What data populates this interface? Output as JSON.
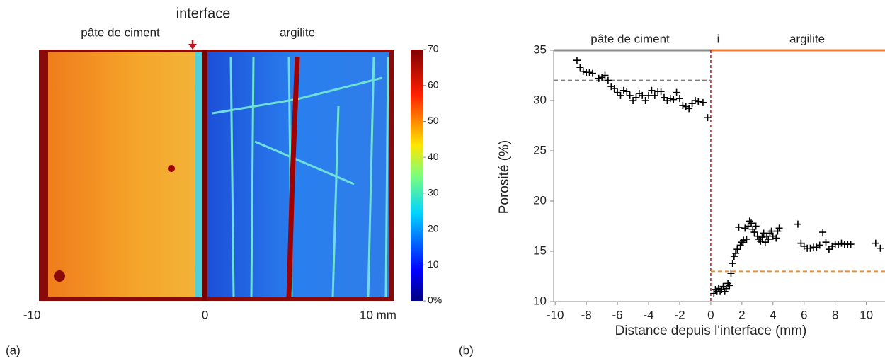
{
  "chart_data": [
    {
      "type": "heatmap",
      "panel": "(a)",
      "region_labels": [
        "pâte de ciment",
        "argilite"
      ],
      "region_colors": [
        "#8c8c8c",
        "#ee8a3a"
      ],
      "interface_label": "interface",
      "interface_color": "#c0141e",
      "xlim": [
        -9.6,
        10.9
      ],
      "xticks": [
        -10,
        0,
        {
          "value": 10,
          "label": "10 mm"
        }
      ],
      "colorbar": {
        "lim": [
          0,
          70
        ],
        "ticks": [
          {
            "value": 0,
            "label": "0%"
          },
          10,
          20,
          30,
          40,
          50,
          60,
          70
        ]
      }
    },
    {
      "type": "scatter",
      "panel": "(b)",
      "region_labels": [
        "pâte de ciment",
        "argilite"
      ],
      "region_colors": [
        "#8c8c8c",
        "#ee7d31"
      ],
      "interface_label": "i",
      "interface_color": "#c0141e",
      "interface_x": 0,
      "xlabel": "Distance depuis l'interface (mm)",
      "ylabel": "Porosité (%)",
      "color": "#000",
      "xlim": [
        -10.1,
        11.2
      ],
      "ylim": [
        10,
        35
      ],
      "xticks": [
        -10,
        -8,
        -6,
        -4,
        -2,
        0,
        2,
        4,
        6,
        8,
        10
      ],
      "yticks": [
        10,
        15,
        20,
        25,
        30,
        35
      ],
      "reference_lines": [
        {
          "y": 32,
          "from": -10.1,
          "to": 0,
          "color": "#7f7f7f"
        },
        {
          "y": 13,
          "from": 0,
          "to": 11.2,
          "color": "#f28c28"
        }
      ],
      "x": [
        -8.6,
        -8.4,
        -8.2,
        -8,
        -7.8,
        -7.6,
        -7.2,
        -7,
        -6.8,
        -6.6,
        -6.4,
        -6.2,
        -6,
        -5.8,
        -5.6,
        -5.4,
        -5.2,
        -5,
        -4.8,
        -4.6,
        -4.4,
        -4.2,
        -4,
        -3.8,
        -3.6,
        -3.4,
        -3.2,
        -3,
        -2.8,
        -2.6,
        -2.4,
        -2.2,
        -2,
        -1.8,
        -1.6,
        -1.4,
        -1.2,
        -1,
        -0.8,
        -0.5,
        -0.2,
        0.2,
        0.3,
        0.4,
        0.5,
        0.6,
        0.7,
        0.8,
        0.9,
        1,
        1.1,
        1.2,
        1.3,
        1.4,
        1.5,
        1.6,
        1.7,
        1.8,
        1.9,
        2,
        2.1,
        2.2,
        2.3,
        2.4,
        2.5,
        2.6,
        2.7,
        2.8,
        2.9,
        3,
        3.1,
        3.2,
        3.3,
        3.4,
        3.5,
        3.6,
        3.7,
        3.8,
        3.9,
        4,
        4.2,
        4.3,
        4.4,
        5.6,
        5.8,
        6,
        6.2,
        6.4,
        6.6,
        6.8,
        7,
        7.2,
        7.4,
        7.6,
        7.8,
        8,
        8.2,
        8.4,
        8.6,
        8.8,
        9,
        10.6,
        10.9
      ],
      "y": [
        34,
        33.3,
        32.9,
        32.8,
        32.8,
        32.7,
        32.2,
        32.3,
        32.5,
        32,
        31.4,
        31.2,
        30.8,
        30.5,
        31,
        30.9,
        30.5,
        30,
        30.3,
        30.7,
        30.5,
        30,
        30.5,
        31,
        30.5,
        30.9,
        30.9,
        30.3,
        30,
        30.2,
        30.1,
        30.8,
        30.2,
        29.5,
        29.4,
        29.2,
        29.7,
        30,
        29.9,
        29.8,
        28.3,
        10.8,
        11.2,
        11,
        11.3,
        11,
        11.2,
        11.5,
        11,
        11.3,
        11.8,
        11.6,
        12.8,
        13.8,
        14.5,
        14.8,
        15.2,
        17.4,
        15.6,
        15.9,
        16.1,
        17.3,
        16.2,
        17.5,
        18,
        17.8,
        17.2,
        16.9,
        17.5,
        16.5,
        16.2,
        16,
        16.4,
        16.8,
        15.9,
        16.5,
        16.2,
        16.8,
        17,
        16.5,
        16.3,
        17,
        17.3,
        17.7,
        15.8,
        15.5,
        15.3,
        15.3,
        15.4,
        15.4,
        15.6,
        16.9,
        15.9,
        15.2,
        15.5,
        15.7,
        15.7,
        15.8,
        15.7,
        15.7,
        15.7,
        15.8,
        15.3
      ]
    }
  ]
}
